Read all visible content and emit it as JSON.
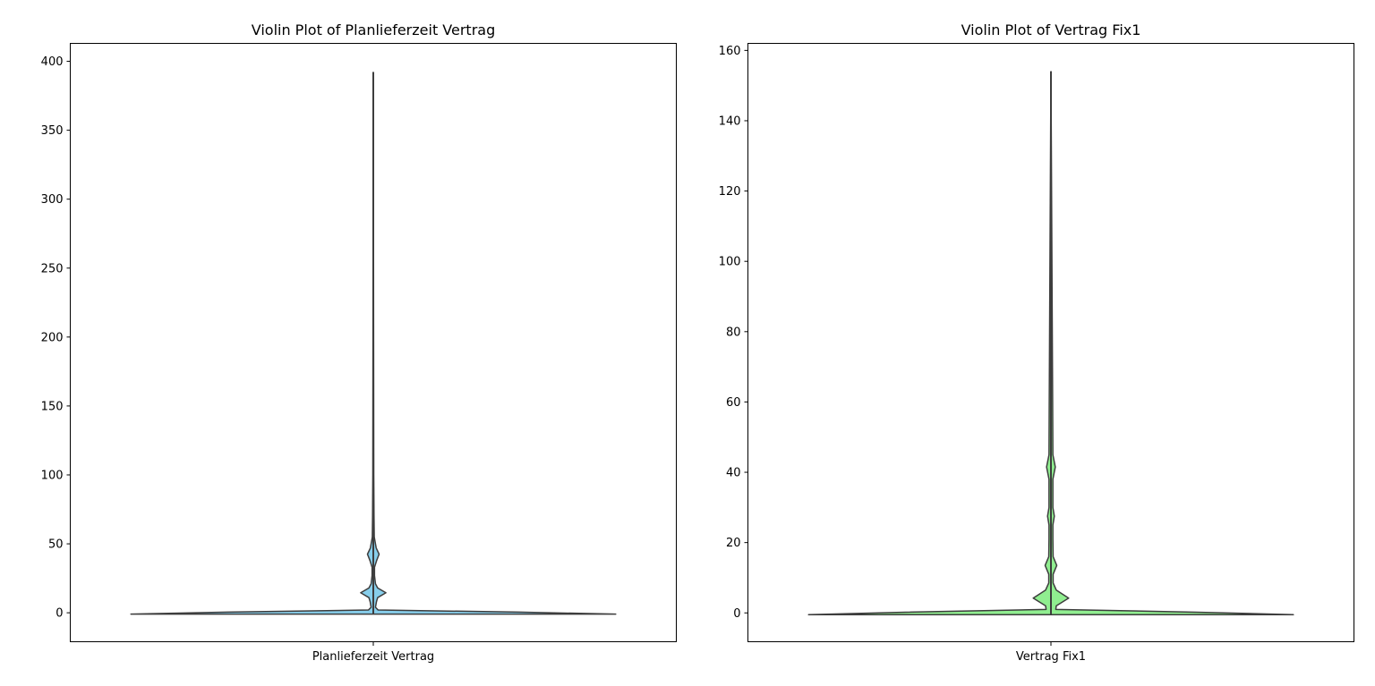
{
  "chart_data": [
    {
      "type": "violin",
      "title": "Violin Plot of Planlieferzeit Vertrag",
      "categories": [
        "Planlieferzeit Vertrag"
      ],
      "xlabel": "",
      "ylabel": "",
      "ylim": [
        -21,
        413
      ],
      "yticks": [
        0,
        50,
        100,
        150,
        200,
        250,
        300,
        350,
        400
      ],
      "whisker_range": [
        -1,
        392
      ],
      "color": "#87ceeb",
      "grid": false,
      "density": [
        {
          "y": -1,
          "w": 1.0
        },
        {
          "y": 0.5,
          "w": 0.6
        },
        {
          "y": 2,
          "w": 0.02
        },
        {
          "y": 4,
          "w": 0.009
        },
        {
          "y": 8,
          "w": 0.013
        },
        {
          "y": 11,
          "w": 0.018
        },
        {
          "y": 14.5,
          "w": 0.052
        },
        {
          "y": 18,
          "w": 0.018
        },
        {
          "y": 21,
          "w": 0.009
        },
        {
          "y": 27,
          "w": 0.005
        },
        {
          "y": 33,
          "w": 0.005
        },
        {
          "y": 38,
          "w": 0.014
        },
        {
          "y": 42.5,
          "w": 0.024
        },
        {
          "y": 47,
          "w": 0.012
        },
        {
          "y": 55,
          "w": 0.004
        },
        {
          "y": 70,
          "w": 0.003
        },
        {
          "y": 100,
          "w": 0.002
        },
        {
          "y": 392,
          "w": 0.0
        }
      ]
    },
    {
      "type": "violin",
      "title": "Violin Plot of Vertrag Fix1",
      "categories": [
        "Vertrag Fix1"
      ],
      "xlabel": "",
      "ylabel": "",
      "ylim": [
        -8.2,
        162
      ],
      "yticks": [
        0,
        20,
        40,
        60,
        80,
        100,
        120,
        140,
        160
      ],
      "whisker_range": [
        -0.5,
        154
      ],
      "color": "#90ee90",
      "grid": false,
      "density": [
        {
          "y": -0.5,
          "w": 1.0
        },
        {
          "y": 0.2,
          "w": 0.6
        },
        {
          "y": 1,
          "w": 0.02
        },
        {
          "y": 2,
          "w": 0.022
        },
        {
          "y": 4.2,
          "w": 0.073
        },
        {
          "y": 6.5,
          "w": 0.022
        },
        {
          "y": 8.5,
          "w": 0.009
        },
        {
          "y": 11,
          "w": 0.009
        },
        {
          "y": 13.5,
          "w": 0.024
        },
        {
          "y": 16,
          "w": 0.009
        },
        {
          "y": 21,
          "w": 0.008
        },
        {
          "y": 25,
          "w": 0.008
        },
        {
          "y": 27.5,
          "w": 0.014
        },
        {
          "y": 30,
          "w": 0.008
        },
        {
          "y": 38,
          "w": 0.008
        },
        {
          "y": 41.5,
          "w": 0.018
        },
        {
          "y": 45,
          "w": 0.008
        },
        {
          "y": 60,
          "w": 0.007
        },
        {
          "y": 154,
          "w": 0.0
        }
      ]
    }
  ]
}
